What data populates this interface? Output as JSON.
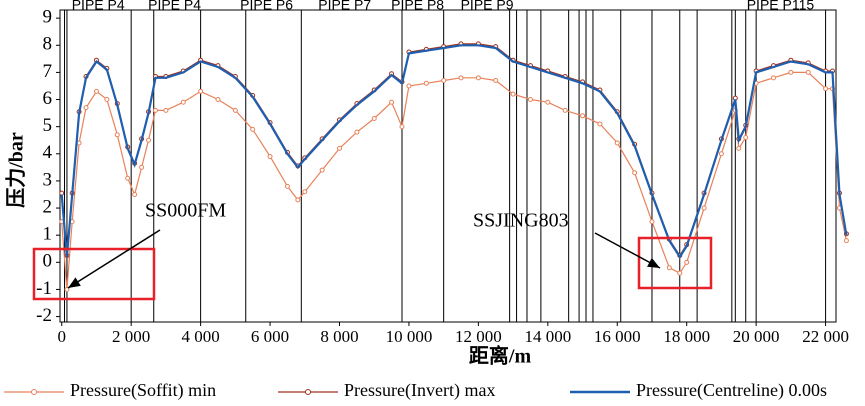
{
  "chart_data": {
    "type": "line",
    "x_label": "距离/m",
    "y_label": "压力/bar",
    "xlim": [
      -50,
      22300
    ],
    "ylim": [
      -2.2,
      9.3
    ],
    "xticks": [
      0,
      {
        "value": 2000,
        "label": "2 000"
      },
      {
        "value": 4000,
        "label": "4 000"
      },
      {
        "value": 6000,
        "label": "6 000"
      },
      {
        "value": 8000,
        "label": "8 000"
      },
      {
        "value": 10000,
        "label": "10 000"
      },
      {
        "value": 12000,
        "label": "12 000"
      },
      {
        "value": 14000,
        "label": "14 000"
      },
      {
        "value": 16000,
        "label": "16 000"
      },
      {
        "value": 18000,
        "label": "18 000"
      },
      {
        "value": 20000,
        "label": "20 000"
      },
      {
        "value": 22000,
        "label": "22 000"
      }
    ],
    "yticks": [
      -2,
      -1,
      0,
      1,
      2,
      3,
      4,
      5,
      6,
      7,
      8,
      9
    ],
    "x": [
      0,
      150,
      300,
      500,
      700,
      1000,
      1300,
      1600,
      1900,
      2100,
      2300,
      2500,
      2700,
      3000,
      3500,
      4000,
      4500,
      5000,
      5500,
      6000,
      6500,
      6800,
      7000,
      7500,
      8000,
      8500,
      9000,
      9500,
      9800,
      10000,
      10500,
      11000,
      11500,
      12000,
      12500,
      13000,
      13500,
      14000,
      14500,
      15000,
      15500,
      16000,
      16500,
      17000,
      17500,
      17800,
      18000,
      18500,
      19000,
      19400,
      19500,
      19700,
      20000,
      20500,
      21000,
      21500,
      22000,
      22200,
      22400,
      22600
    ],
    "series": [
      {
        "name": "Pressure(Soffit) min",
        "color": "#e8825a",
        "values": [
          1.5,
          -1.0,
          1.5,
          4.4,
          5.7,
          6.3,
          6.0,
          4.7,
          3.1,
          2.5,
          3.5,
          4.5,
          5.6,
          5.6,
          5.9,
          6.3,
          6.0,
          5.6,
          4.9,
          3.9,
          2.8,
          2.3,
          2.6,
          3.4,
          4.2,
          4.8,
          5.3,
          5.9,
          5.0,
          6.5,
          6.6,
          6.7,
          6.8,
          6.8,
          6.7,
          6.2,
          6.0,
          5.9,
          5.6,
          5.4,
          5.1,
          4.4,
          3.3,
          1.5,
          -0.2,
          -0.4,
          0.0,
          2.0,
          4.0,
          5.6,
          4.2,
          4.6,
          6.6,
          6.8,
          7.0,
          7.0,
          6.4,
          6.4,
          2.0,
          0.8
        ]
      },
      {
        "name": "Pressure(Invert) max",
        "color": "#a0301e",
        "values": [
          2.55,
          0.25,
          2.55,
          5.55,
          6.85,
          7.45,
          7.15,
          5.85,
          4.25,
          3.65,
          4.55,
          5.55,
          6.85,
          6.85,
          7.05,
          7.45,
          7.25,
          6.85,
          6.15,
          5.15,
          4.05,
          3.55,
          3.85,
          4.55,
          5.25,
          5.85,
          6.35,
          6.95,
          6.65,
          7.75,
          7.85,
          7.95,
          8.05,
          8.05,
          7.95,
          7.45,
          7.25,
          7.05,
          6.85,
          6.65,
          6.35,
          5.55,
          4.35,
          2.55,
          0.85,
          0.25,
          0.65,
          2.55,
          4.55,
          6.05,
          4.55,
          5.05,
          7.05,
          7.25,
          7.45,
          7.35,
          7.05,
          7.05,
          2.55,
          1.05
        ]
      },
      {
        "name": "Pressure(Centreline) 0.00s",
        "color": "#1f5fb0",
        "values": [
          2.5,
          0.2,
          2.5,
          5.5,
          6.8,
          7.4,
          7.1,
          5.8,
          4.2,
          3.6,
          4.5,
          5.5,
          6.8,
          6.8,
          7.0,
          7.4,
          7.2,
          6.8,
          6.1,
          5.1,
          4.0,
          3.5,
          3.8,
          4.5,
          5.2,
          5.8,
          6.3,
          6.9,
          6.6,
          7.7,
          7.8,
          7.9,
          8.0,
          8.0,
          7.9,
          7.4,
          7.2,
          7.0,
          6.8,
          6.6,
          6.3,
          5.5,
          4.3,
          2.5,
          0.8,
          0.2,
          0.6,
          2.5,
          4.5,
          6.0,
          4.5,
          5.0,
          7.0,
          7.2,
          7.4,
          7.3,
          7.0,
          7.0,
          2.5,
          1.0
        ]
      }
    ],
    "pipe_lines": [
      80,
      150,
      2000,
      2650,
      4000,
      5300,
      6900,
      9800,
      11000,
      12900,
      13100,
      13400,
      13800,
      14600,
      14900,
      15100,
      15300,
      16100,
      17000,
      17800,
      18300,
      19300,
      19400,
      19700,
      20000,
      22000
    ],
    "pipe_labels": [
      {
        "text": "PIPE P4",
        "x": 1050
      },
      {
        "text": "PIPE P4",
        "x": 3250
      },
      {
        "text": "PIPE P6",
        "x": 5900
      },
      {
        "text": "PIPE P7",
        "x": 8150
      },
      {
        "text": "PIPE P8",
        "x": 10250
      },
      {
        "text": "PIPE P9",
        "x": 12250
      },
      {
        "text": "PIPE P115",
        "x": 20700
      }
    ],
    "callouts": [
      "SS000FM",
      "SSJING803"
    ]
  }
}
